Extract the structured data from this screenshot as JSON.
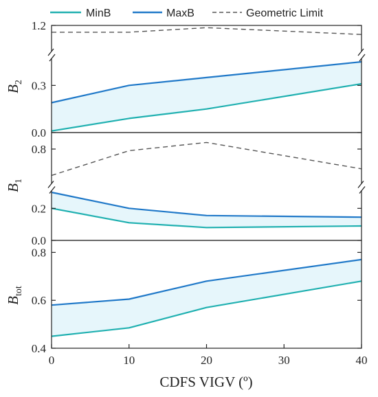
{
  "chart_data": {
    "type": "line",
    "xlabel": "CDFS VIGV (º)",
    "x_ticks": [
      "0",
      "10",
      "20",
      "30",
      "40"
    ],
    "xlim": [
      0,
      40
    ],
    "colors": {
      "minb": "#1fb0b0",
      "maxb": "#1f78c8",
      "geo": "#555555",
      "fill": "#e6f6fb"
    },
    "legend": {
      "placement": "top",
      "entries": [
        {
          "key": "minb",
          "label": "MinB",
          "style": "solid"
        },
        {
          "key": "maxb",
          "label": "MaxB",
          "style": "solid"
        },
        {
          "key": "geo",
          "label": "Geometric Limit",
          "style": "dashed"
        }
      ]
    },
    "panels": [
      {
        "id": "b2",
        "ylabel_main": "B",
        "ylabel_sub": "2",
        "broken_axis": true,
        "upper_ylim": [
          1.1,
          1.2
        ],
        "upper_ticks": [
          "1.2"
        ],
        "lower_ylim": [
          0.0,
          0.45
        ],
        "lower_ticks": [
          "0.0",
          "0.3"
        ],
        "series": [
          {
            "name": "MinB",
            "key": "minb",
            "x": [
              0,
              10,
              20,
              40
            ],
            "y": [
              0.01,
              0.09,
              0.15,
              0.31
            ]
          },
          {
            "name": "MaxB",
            "key": "maxb",
            "x": [
              0,
              10,
              20,
              40
            ],
            "y": [
              0.19,
              0.3,
              0.35,
              0.45
            ]
          },
          {
            "name": "Geometric Limit",
            "key": "geo",
            "x": [
              0,
              10,
              20,
              40
            ],
            "y": [
              1.17,
              1.17,
              1.19,
              1.16
            ]
          }
        ]
      },
      {
        "id": "b1",
        "ylabel_main": "B",
        "ylabel_sub": "1",
        "broken_axis": true,
        "upper_ylim": [
          0.6,
          0.9
        ],
        "upper_ticks": [
          "0.8"
        ],
        "lower_ylim": [
          0.0,
          0.3
        ],
        "lower_ticks": [
          "0.0",
          "0.2"
        ],
        "series": [
          {
            "name": "MinB",
            "key": "minb",
            "x": [
              0,
              10,
              20,
              40
            ],
            "y": [
              0.2,
              0.11,
              0.08,
              0.09
            ]
          },
          {
            "name": "MaxB",
            "key": "maxb",
            "x": [
              0,
              10,
              20,
              40
            ],
            "y": [
              0.3,
              0.2,
              0.155,
              0.145
            ]
          },
          {
            "name": "Geometric Limit",
            "key": "geo",
            "x": [
              0,
              10,
              20,
              40
            ],
            "y": [
              0.64,
              0.79,
              0.84,
              0.68
            ]
          }
        ]
      },
      {
        "id": "btot",
        "ylabel_main": "B",
        "ylabel_sub": "tot",
        "broken_axis": false,
        "ylim": [
          0.4,
          0.85
        ],
        "ticks": [
          "0.4",
          "0.6",
          "0.8"
        ],
        "series": [
          {
            "name": "MinB",
            "key": "minb",
            "x": [
              0,
              10,
              20,
              40
            ],
            "y": [
              0.45,
              0.485,
              0.57,
              0.68
            ]
          },
          {
            "name": "MaxB",
            "key": "maxb",
            "x": [
              0,
              10,
              20,
              40
            ],
            "y": [
              0.58,
              0.605,
              0.68,
              0.77
            ]
          }
        ]
      }
    ]
  }
}
